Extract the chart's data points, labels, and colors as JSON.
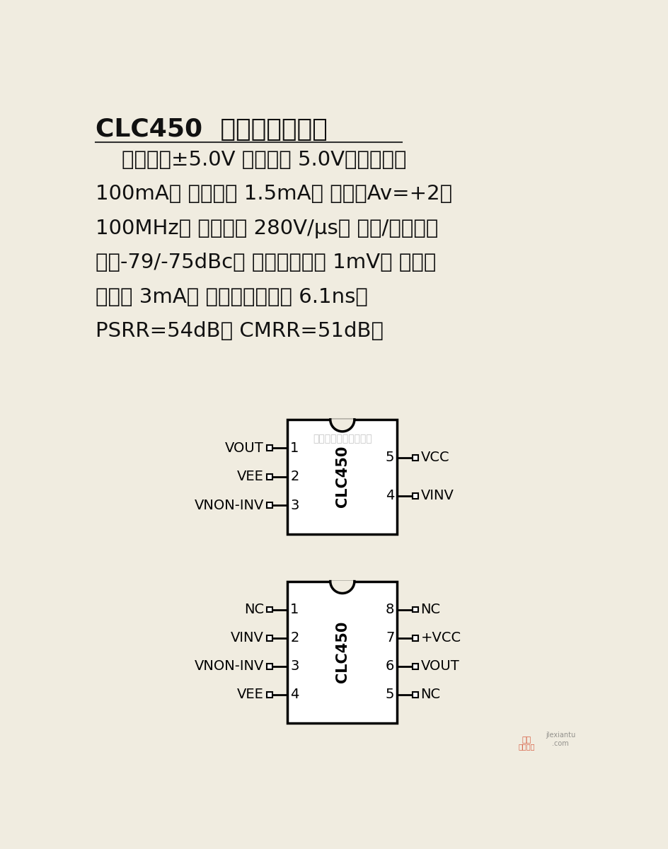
{
  "title_bold": "CLC450",
  "title_rest": "  电流反馈放大器",
  "description_lines": [
    "    工作电压±5.0V 或单电源 5.0V；输出电流",
    "100mA； 电源电流 1.5mA； 带宽（Av=+2）",
    "100MHz； 转换速率 280V/μs； 二次/三次谐波",
    "失真-79/-75dBc； 输入失调电压 1mV； 输入偏",
    "置电流 3mA； 上升及下降时间 6.1ns；",
    "PSRR=54dB； CMRR=51dB。"
  ],
  "bg_color": "#f0ece0",
  "text_color": "#111111",
  "ic1": {
    "label": "CLC450",
    "left_pins": [
      {
        "num": "1",
        "name": "VOUT"
      },
      {
        "num": "2",
        "name": "VEE"
      },
      {
        "num": "3",
        "name": "VNON-INV"
      }
    ],
    "right_pins": [
      {
        "num": "5",
        "name": "VCC"
      },
      {
        "num": "4",
        "name": "VINV"
      }
    ]
  },
  "ic2": {
    "label": "CLC450",
    "left_pins": [
      {
        "num": "1",
        "name": "NC"
      },
      {
        "num": "2",
        "name": "VINV"
      },
      {
        "num": "3",
        "name": "VNON-INV"
      },
      {
        "num": "4",
        "name": "VEE"
      }
    ],
    "right_pins": [
      {
        "num": "8",
        "name": "NC"
      },
      {
        "num": "7",
        "name": "+VCC"
      },
      {
        "num": "6",
        "name": "VOUT"
      },
      {
        "num": "5",
        "name": "NC"
      }
    ]
  },
  "watermark": "杭州络睶科技有限公司"
}
